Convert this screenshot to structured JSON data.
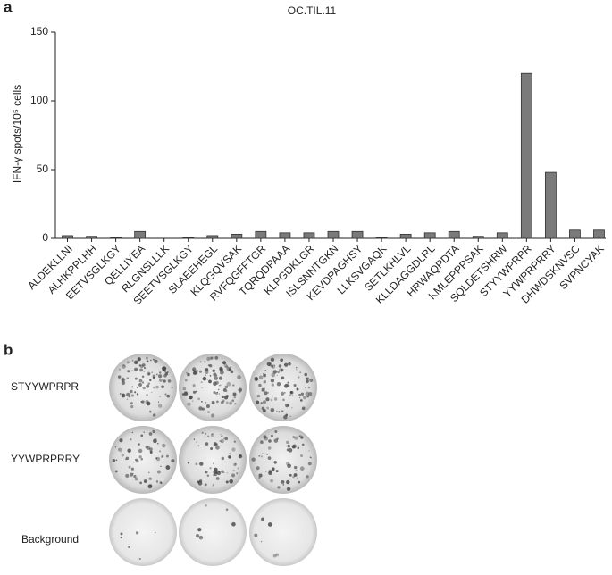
{
  "panel_labels": [
    "a",
    "b"
  ],
  "chart_data": {
    "type": "bar",
    "title": "OC.TIL.11",
    "y_label": "IFN-γ spots/10⁵ cells",
    "categories": [
      "ALDEKLLNI",
      "ALHKPPLHH",
      "EETVSGLKGY",
      "QELLIYEA",
      "RLGNSLLLK",
      "SEETVSGLKGY",
      "SLAEEHEGL",
      "KLQGQVSAK",
      "RVFQGFFTGR",
      "TQRQDPAAA",
      "KLPGDKLGR",
      "ISLSNNTGKN",
      "KEVDPAGHSY",
      "LLKSVGAQK",
      "SETLKHLVL",
      "KLLDAGGDLRL",
      "HRWAQPDTA",
      "KMLEPPPSAK",
      "SQLDETSHRW",
      "STYYWPRPR",
      "YYWPRPRRY",
      "DHWDSKNVSC",
      "SVPNCYAK"
    ],
    "values": [
      2,
      1.5,
      0.5,
      5,
      0,
      0.5,
      2,
      3,
      5,
      4,
      4,
      5,
      5,
      0.5,
      3,
      4,
      5,
      1.5,
      4,
      120,
      48,
      6,
      6
    ],
    "color": "#7a7a7a",
    "ylim": [
      0,
      150
    ],
    "yticks": [
      0,
      50,
      100,
      150
    ]
  },
  "wells": {
    "rows": [
      "STYYWPRPR",
      "YYWPRPRRY",
      "Background"
    ]
  }
}
